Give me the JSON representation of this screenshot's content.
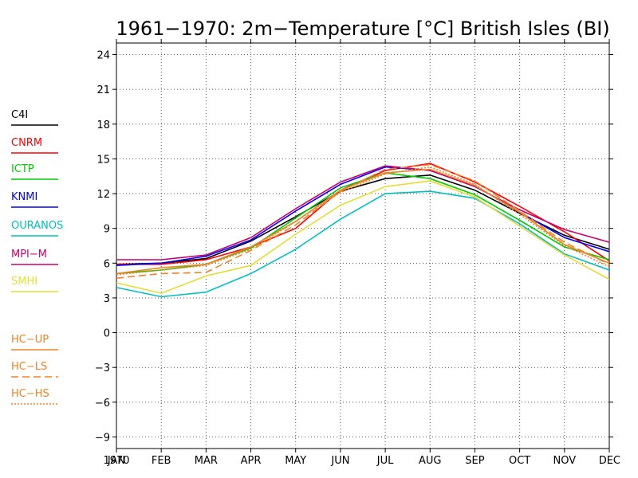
{
  "chart_data": {
    "type": "line",
    "title": "1961−1970: 2m−Temperature [°C] British Isles (BI)",
    "xlabel": "",
    "ylabel": "",
    "categories": [
      "JAN",
      "FEB",
      "MAR",
      "APR",
      "MAY",
      "JUN",
      "JUL",
      "AUG",
      "SEP",
      "OCT",
      "NOV",
      "DEC"
    ],
    "x_sublabel": "1970",
    "ylim": [
      -10,
      25
    ],
    "yticks": [
      -9,
      -6,
      -3,
      0,
      3,
      6,
      9,
      12,
      15,
      18,
      21,
      24
    ],
    "ytick_labels": [
      "−9",
      "−6",
      "−3",
      "0",
      "3",
      "6",
      "9",
      "12",
      "15",
      "18",
      "21",
      "24"
    ],
    "grid": true,
    "legend_position": "left",
    "series": [
      {
        "name": "C4I",
        "color": "#000000",
        "dash": "solid",
        "values": [
          5.9,
          6.0,
          6.4,
          7.9,
          10.0,
          12.2,
          13.3,
          13.6,
          12.3,
          10.3,
          8.4,
          7.2
        ]
      },
      {
        "name": "CNRM",
        "color": "#ff0000",
        "dash": "solid",
        "values": [
          5.9,
          5.9,
          6.3,
          7.4,
          9.0,
          12.3,
          14.0,
          14.6,
          13.0,
          10.9,
          8.7,
          6.2
        ]
      },
      {
        "name": "ICTP",
        "color": "#00cc00",
        "dash": "solid",
        "values": [
          5.1,
          5.4,
          5.9,
          7.3,
          9.9,
          12.5,
          13.8,
          13.3,
          11.9,
          9.7,
          7.4,
          6.3
        ]
      },
      {
        "name": "KNMI",
        "color": "#0000ff",
        "dash": "solid",
        "values": [
          5.8,
          6.0,
          6.6,
          8.0,
          10.5,
          12.8,
          14.3,
          14.0,
          12.7,
          10.4,
          8.2,
          7.0
        ]
      },
      {
        "name": "OURANOS",
        "color": "#00c0c0",
        "dash": "solid",
        "values": [
          3.9,
          3.1,
          3.5,
          5.1,
          7.2,
          9.8,
          12.0,
          12.2,
          11.6,
          9.4,
          6.8,
          5.4
        ]
      },
      {
        "name": "MPI−M",
        "color": "#c8006e",
        "dash": "solid",
        "values": [
          6.3,
          6.3,
          6.7,
          8.2,
          10.7,
          13.0,
          14.4,
          14.0,
          12.6,
          10.6,
          8.9,
          7.8
        ]
      },
      {
        "name": "SMHI",
        "color": "#e8dc32",
        "dash": "solid",
        "values": [
          4.3,
          3.4,
          4.9,
          5.8,
          8.5,
          11.0,
          12.6,
          13.1,
          11.7,
          9.2,
          6.7,
          4.6
        ]
      },
      {
        "name": "HC−UP",
        "color": "#f08228",
        "dash": "solid",
        "values": [
          5.1,
          5.6,
          5.9,
          7.4,
          9.6,
          12.3,
          13.8,
          14.1,
          12.7,
          10.4,
          7.6,
          6.0
        ]
      },
      {
        "name": "HC−LS",
        "color": "#f08228",
        "dash": "dashed",
        "values": [
          4.7,
          5.1,
          5.2,
          7.1,
          9.3,
          12.2,
          14.1,
          14.5,
          13.1,
          10.5,
          7.8,
          5.9
        ]
      },
      {
        "name": "HC−HS",
        "color": "#f08228",
        "dash": "dotted",
        "values": [
          5.0,
          5.4,
          5.8,
          7.2,
          9.6,
          12.1,
          13.7,
          14.3,
          12.8,
          10.2,
          7.5,
          5.7
        ]
      }
    ]
  }
}
